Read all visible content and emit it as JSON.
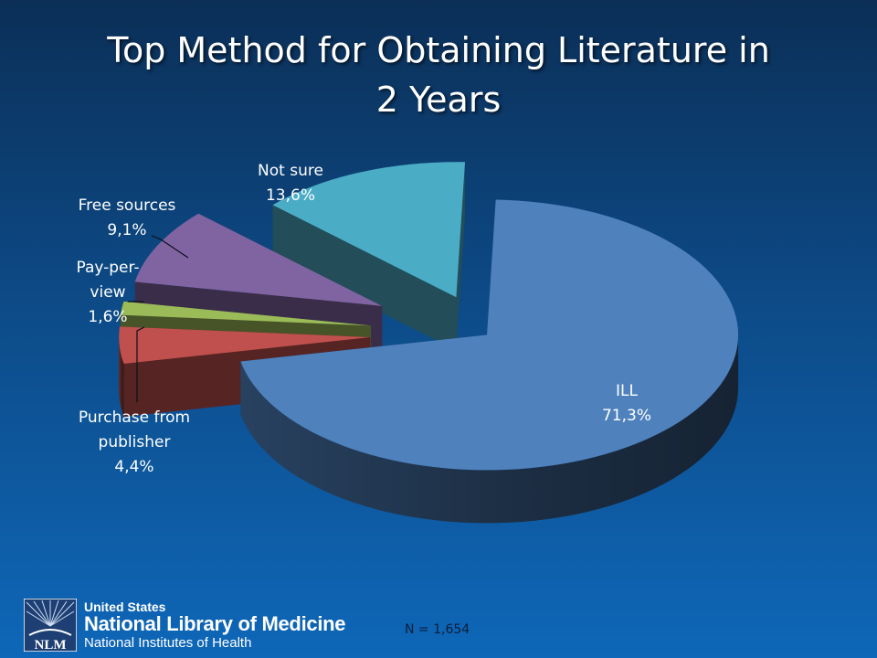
{
  "slide": {
    "title_lines": [
      "Top Method for Obtaining Literature in",
      "2 Years"
    ],
    "note": "N = 1,654",
    "logo": {
      "mark_text": "NLM",
      "line1": "United States",
      "line2": "National Library of Medicine",
      "line3": "National Institutes of Health"
    }
  },
  "chart_data": {
    "type": "pie",
    "title": "Top Method for Obtaining Literature in 2 Years",
    "slices": [
      {
        "label": "ILL",
        "value": 71.3,
        "value_label": "71,3%",
        "color": "#4f81bd"
      },
      {
        "label": "Purchase from publisher",
        "value": 4.4,
        "value_label": "4,4%",
        "color": "#c0504d"
      },
      {
        "label": "Pay-per-view",
        "value": 1.6,
        "value_label": "1,6%",
        "color": "#9bbb59"
      },
      {
        "label": "Free sources",
        "value": 9.1,
        "value_label": "9,1%",
        "color": "#8064a2"
      },
      {
        "label": "Not sure",
        "value": 13.6,
        "value_label": "13,6%",
        "color": "#4bacc6"
      }
    ],
    "label_lines": [
      [
        "ILL",
        "71,3%"
      ],
      [
        "Purchase from",
        "publisher",
        "4,4%"
      ],
      [
        "Pay-per-",
        "view",
        "1,6%"
      ],
      [
        "Free sources",
        "9,1%"
      ],
      [
        "Not sure",
        "13,6%"
      ]
    ],
    "exploded": true,
    "style": "3d",
    "legend": "none"
  }
}
